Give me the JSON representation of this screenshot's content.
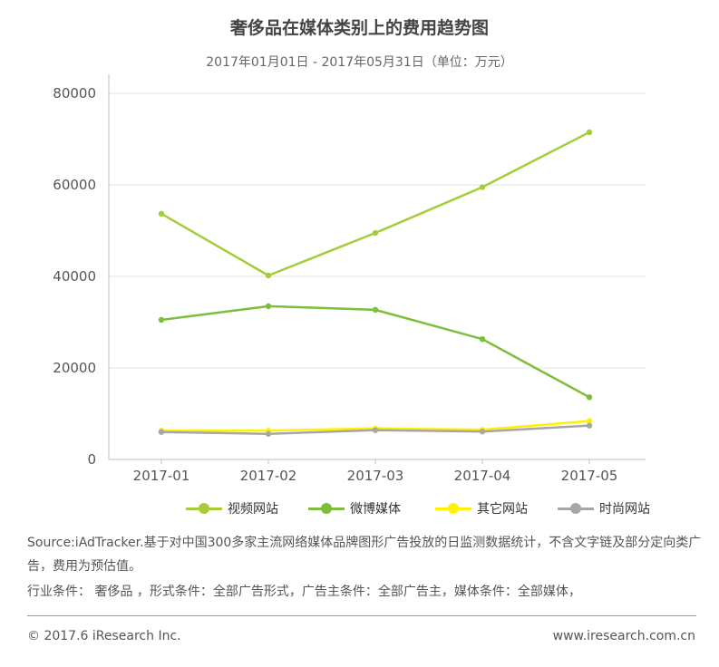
{
  "chart_data": {
    "type": "line",
    "title": "奢侈品在媒体类别上的费用趋势图",
    "subtitle": "2017年01月01日 - 2017年05月31日（单位：万元）",
    "categories": [
      "2017-01",
      "2017-02",
      "2017-03",
      "2017-04",
      "2017-05"
    ],
    "ylim": [
      0,
      80000
    ],
    "yticks": [
      0,
      20000,
      40000,
      60000,
      80000
    ],
    "grid": true,
    "legend_position": "bottom",
    "series": [
      {
        "name": "视频网站",
        "color": "#A5CD39",
        "values": [
          53700,
          40200,
          49500,
          59500,
          71500
        ]
      },
      {
        "name": "微博媒体",
        "color": "#7DBE3A",
        "values": [
          30500,
          33500,
          32700,
          26300,
          13600
        ]
      },
      {
        "name": "其它网站",
        "color": "#FFF200",
        "values": [
          6300,
          6300,
          6800,
          6500,
          8400
        ]
      },
      {
        "name": "时尚网站",
        "color": "#A6A6A6",
        "values": [
          6000,
          5600,
          6400,
          6100,
          7400
        ]
      }
    ]
  },
  "footer": {
    "source": "Source:iAdTracker.基于对中国300多家主流网络媒体品牌图形广告投放的日监测数据统计，不含文字链及部分定向类广告，费用为预估值。",
    "filters": "行业条件： 奢侈品 ，形式条件：全部广告形式，广告主条件：全部广告主，媒体条件：全部媒体，",
    "copyright": "© 2017.6 iResearch Inc.",
    "website": "www.iresearch.com.cn"
  }
}
